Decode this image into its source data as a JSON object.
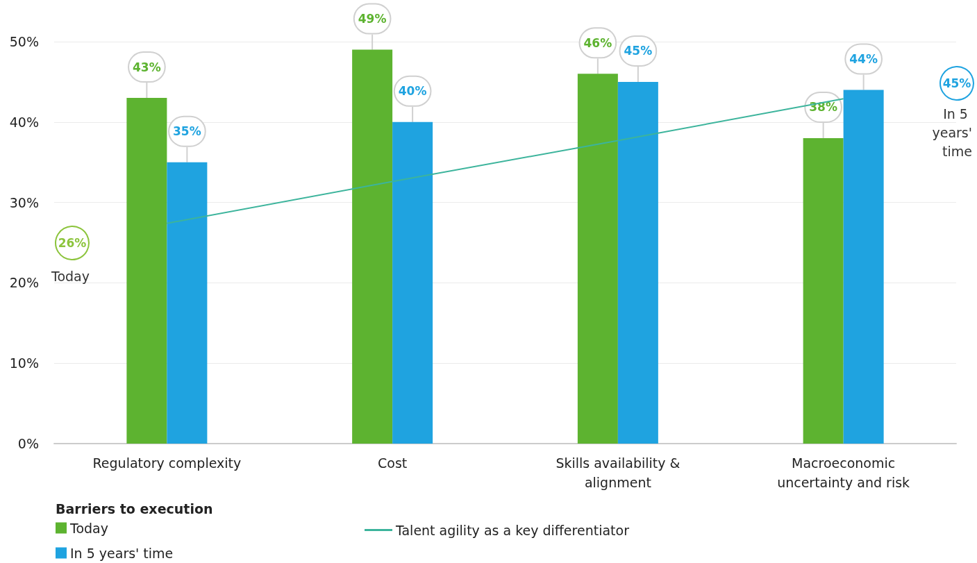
{
  "chart_data": {
    "type": "bar",
    "categories": [
      "Regulatory complexity",
      "Cost",
      "Skills availability &\nalignment",
      "Macroeconomic\nuncertainty and risk"
    ],
    "series": [
      {
        "name": "Today",
        "color": "#5db330",
        "values": [
          43,
          49,
          46,
          38
        ],
        "value_labels": [
          "43%",
          "49%",
          "46%",
          "38%"
        ]
      },
      {
        "name": "In 5 years' time",
        "color": "#1fa3e0",
        "values": [
          35,
          40,
          45,
          44
        ],
        "value_labels": [
          "35%",
          "40%",
          "45%",
          "44%"
        ]
      },
      {
        "name": "Talent agility as a key differentiator",
        "type": "line",
        "color": "#3cb49c",
        "values": [
          27.4,
          32.6,
          37.7,
          42.9
        ]
      }
    ],
    "ylim": [
      0,
      50
    ],
    "yticks": [
      {
        "value": 0,
        "label": "0%"
      },
      {
        "value": 10,
        "label": "10%"
      },
      {
        "value": 20,
        "label": "20%"
      },
      {
        "value": 30,
        "label": "30%"
      },
      {
        "value": 40,
        "label": "40%"
      },
      {
        "value": 50,
        "label": "50%"
      }
    ],
    "grid": "y",
    "legend": "bottom left",
    "legend_title": "Barriers to execution",
    "marker": "none",
    "annotations": [
      "26%",
      "Today",
      "45%",
      "In 5 years' time"
    ]
  }
}
